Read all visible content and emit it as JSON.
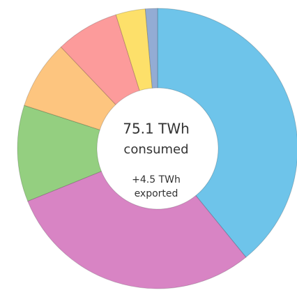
{
  "chart_data": {
    "type": "donut",
    "values": [
      39.1,
      29.7,
      11.1,
      7.9,
      7.3,
      3.4,
      1.4
    ],
    "colors": [
      "#6ec4ea",
      "#d884c4",
      "#94cf80",
      "#fdc57f",
      "#fc9b9b",
      "#fde06a",
      "#93acd4"
    ],
    "center_text": [
      "75.1 TWh",
      "consumed",
      "+4.5 TWh",
      "exported"
    ]
  }
}
